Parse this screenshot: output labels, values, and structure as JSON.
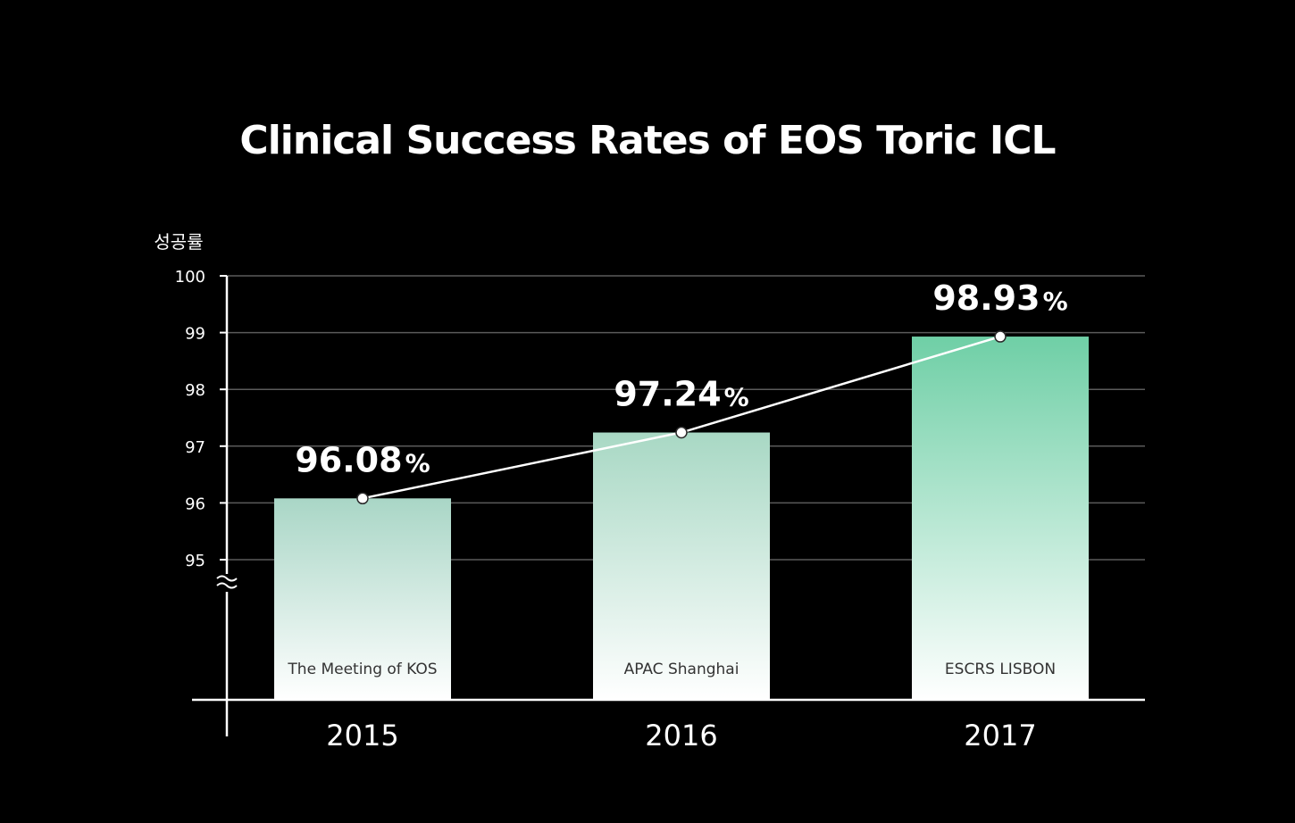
{
  "chart_data": {
    "type": "bar",
    "title": "Clinical Success Rates of EOS Toric ICL",
    "ylabel": "성공률",
    "xlabel": "",
    "ylim": [
      95,
      100
    ],
    "axis_break": true,
    "axis_break_symbol": "≈",
    "yticks": [
      95,
      96,
      97,
      98,
      99,
      100
    ],
    "grid": true,
    "trend_line": true,
    "categories": [
      "2015",
      "2016",
      "2017"
    ],
    "bar_labels": [
      "The Meeting of KOS",
      "APAC Shanghai",
      "ESCRS LISBON"
    ],
    "values": [
      96.08,
      97.24,
      98.93
    ],
    "value_labels": [
      "96.08",
      "97.24",
      "98.93"
    ],
    "value_suffix": "%"
  },
  "colors": {
    "background": "#000000",
    "gridline": "#5a5a5a",
    "axis": "#ffffff",
    "bar_top_1": "#a9d6c6",
    "bar_top_3": "#6fcfa6",
    "bar_bottom": "#ffffff",
    "trend_line": "#ffffff"
  }
}
